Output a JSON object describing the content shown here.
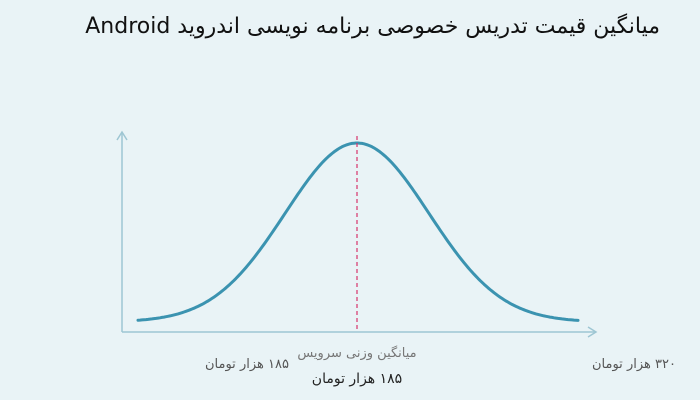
{
  "chart_data": {
    "type": "line",
    "title": "میانگین قیمت تدریس خصوصی برنامه نویسی اندروید Android",
    "x_min_label": "۱۸۵ هزار تومان",
    "x_max_label": "۳۲۰ هزار تومان",
    "mean_caption": "میانگین وزنی سرویس",
    "mean_value_label": "۱۸۵ هزار تومان",
    "curve_shape": "bell",
    "grid": false,
    "legend": "none",
    "colors": {
      "curve": "#3b93b0",
      "mean_line": "#d6336c",
      "axis": "#9ec6d3"
    }
  }
}
